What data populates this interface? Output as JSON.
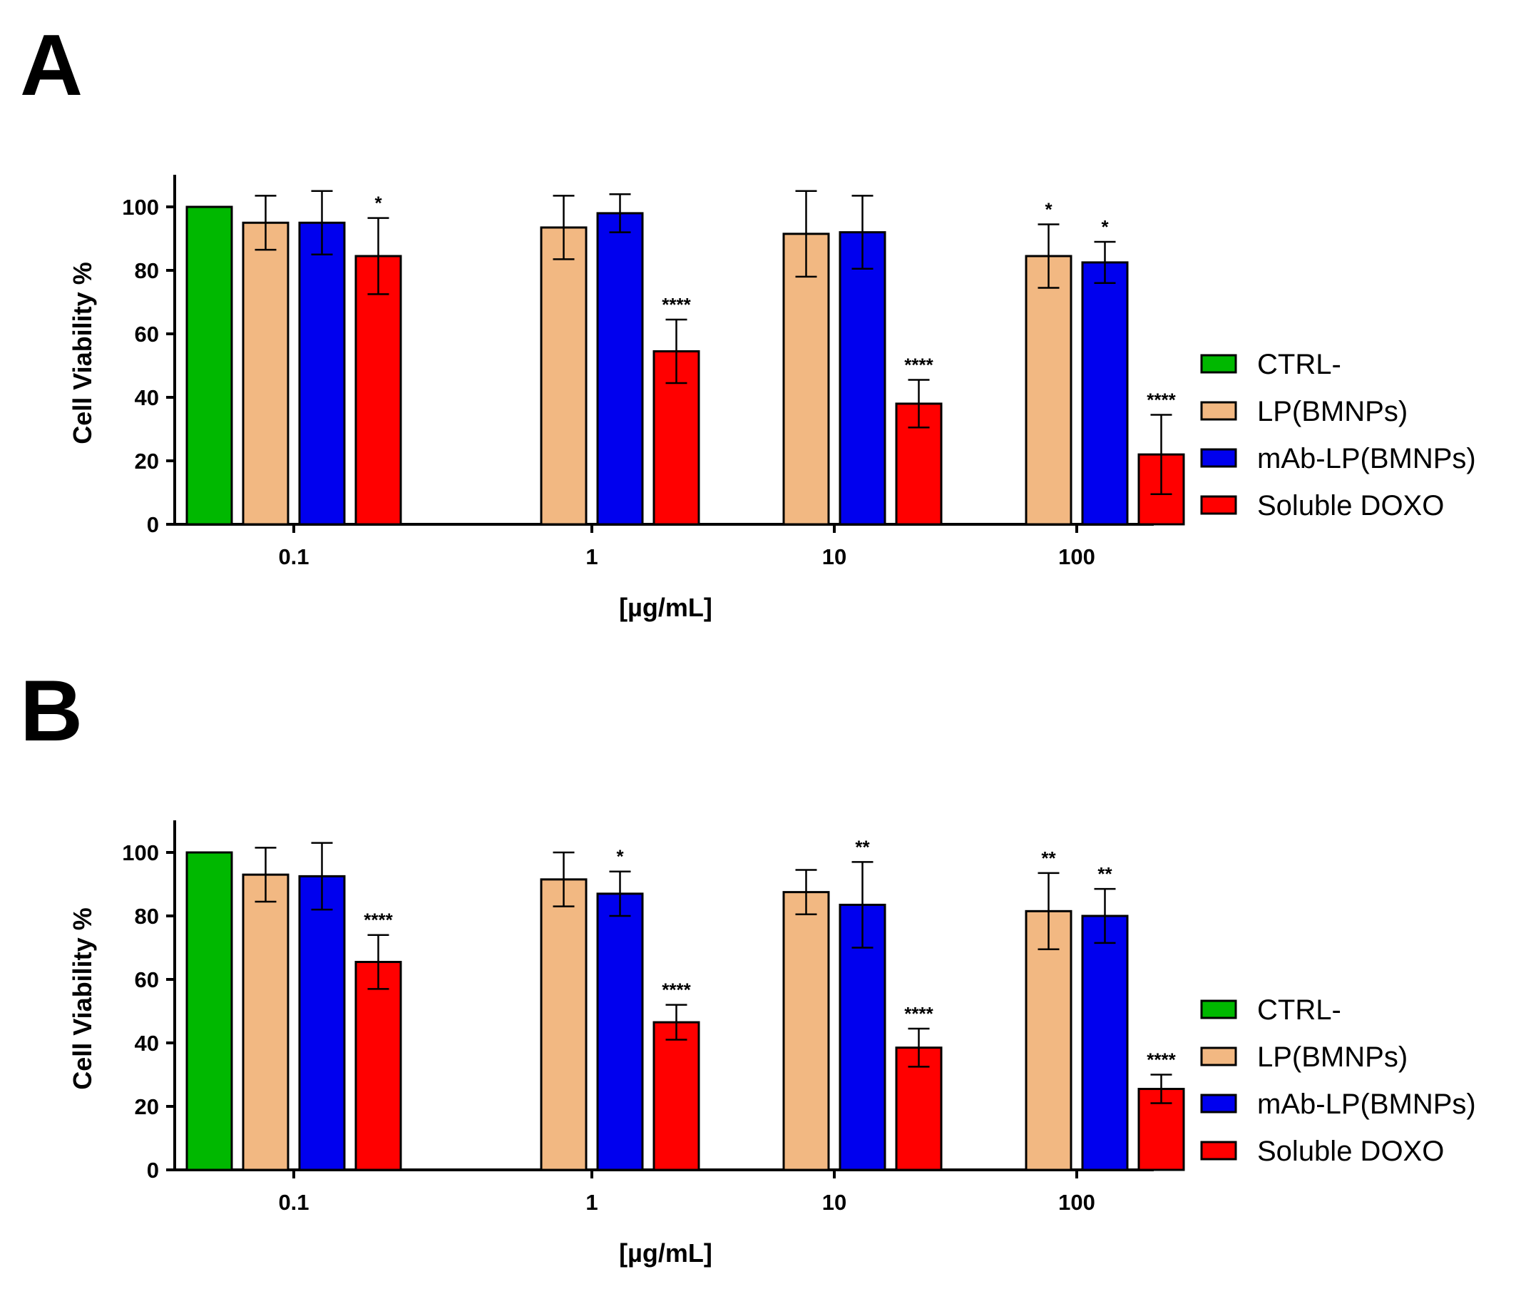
{
  "chart_data": [
    {
      "panel": "A",
      "type": "bar",
      "categories": [
        "0.1",
        "1",
        "10",
        "100"
      ],
      "xlabel": "[µg/mL]",
      "ylabel": "Cell Viability %",
      "ylim": [
        0,
        110
      ],
      "yticks": [
        0,
        20,
        40,
        60,
        80,
        100
      ],
      "series": [
        {
          "name": "CTRL-",
          "color": "#00b800",
          "values": [
            100,
            null,
            null,
            null
          ],
          "errors": [
            0,
            null,
            null,
            null
          ],
          "sig": [
            "",
            "",
            "",
            ""
          ]
        },
        {
          "name": "LP(BMNPs)",
          "color": "#f2b882",
          "values": [
            95,
            93.5,
            91.5,
            84.5
          ],
          "errors": [
            8.5,
            10,
            13.5,
            10
          ],
          "sig": [
            "",
            "",
            "",
            "*"
          ]
        },
        {
          "name": "mAb-LP(BMNPs)",
          "color": "#0000ee",
          "values": [
            95,
            98,
            92,
            82.5
          ],
          "errors": [
            10,
            6,
            11.5,
            6.5
          ],
          "sig": [
            "",
            "",
            "",
            "*"
          ]
        },
        {
          "name": "Soluble DOXO",
          "color": "#ff0000",
          "values": [
            84.5,
            54.5,
            38,
            22
          ],
          "errors": [
            12,
            10,
            7.5,
            12.5
          ],
          "sig": [
            "*",
            "****",
            "****",
            "****"
          ]
        }
      ]
    },
    {
      "panel": "B",
      "type": "bar",
      "categories": [
        "0.1",
        "1",
        "10",
        "100"
      ],
      "xlabel": "[µg/mL]",
      "ylabel": "Cell Viability %",
      "ylim": [
        0,
        110
      ],
      "yticks": [
        0,
        20,
        40,
        60,
        80,
        100
      ],
      "series": [
        {
          "name": "CTRL-",
          "color": "#00b800",
          "values": [
            100,
            null,
            null,
            null
          ],
          "errors": [
            0,
            null,
            null,
            null
          ],
          "sig": [
            "",
            "",
            "",
            ""
          ]
        },
        {
          "name": "LP(BMNPs)",
          "color": "#f2b882",
          "values": [
            93,
            91.5,
            87.5,
            81.5
          ],
          "errors": [
            8.5,
            8.5,
            7,
            12
          ],
          "sig": [
            "",
            "",
            "",
            "**"
          ]
        },
        {
          "name": "mAb-LP(BMNPs)",
          "color": "#0000ee",
          "values": [
            92.5,
            87,
            83.5,
            80
          ],
          "errors": [
            10.5,
            7,
            13.5,
            8.5
          ],
          "sig": [
            "",
            "*",
            "**",
            "**"
          ]
        },
        {
          "name": "Soluble DOXO",
          "color": "#ff0000",
          "values": [
            65.5,
            46.5,
            38.5,
            25.5
          ],
          "errors": [
            8.5,
            5.5,
            6,
            4.5
          ],
          "sig": [
            "****",
            "****",
            "****",
            "****"
          ]
        }
      ]
    }
  ]
}
